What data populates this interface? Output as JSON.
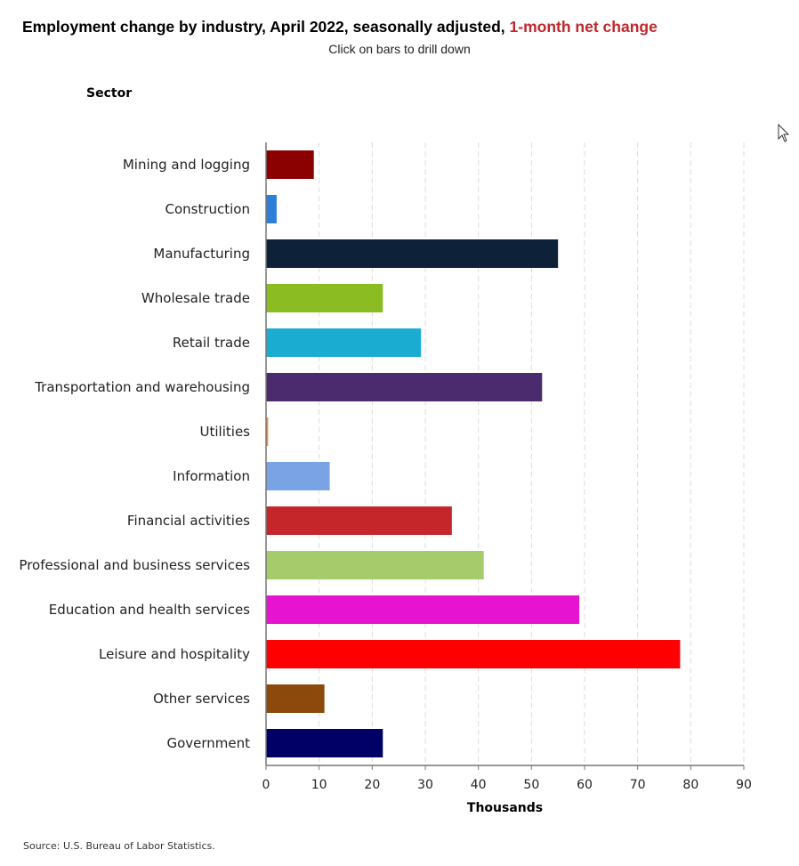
{
  "header": {
    "title_main": "Employment change by industry, April 2022, seasonally adjusted,",
    "title_accent": "1-month net change",
    "subtitle": "Click on bars to drill down"
  },
  "footer": {
    "source": "Source: U.S. Bureau of Labor Statistics."
  },
  "chart_data": {
    "type": "bar",
    "orientation": "horizontal",
    "ylabel": "Sector",
    "xlabel": "Thousands",
    "xlim": [
      0,
      90
    ],
    "xticks": [
      0,
      10,
      20,
      30,
      40,
      50,
      60,
      70,
      80,
      90
    ],
    "grid": "vertical dashed",
    "categories": [
      "Mining and logging",
      "Construction",
      "Manufacturing",
      "Wholesale trade",
      "Retail trade",
      "Transportation and warehousing",
      "Utilities",
      "Information",
      "Financial activities",
      "Professional and business services",
      "Education and health services",
      "Leisure and hospitality",
      "Other services",
      "Government"
    ],
    "values": [
      9,
      2,
      55,
      22,
      29.2,
      52,
      0.4,
      12,
      35,
      41,
      59,
      78,
      11,
      22
    ],
    "colors": [
      "#8b0000",
      "#2e7fd9",
      "#0d2138",
      "#8bbd23",
      "#1badd1",
      "#4b2a6e",
      "#f28e3c",
      "#7aa3e5",
      "#c4262a",
      "#a6cb6a",
      "#e614d1",
      "#ff0000",
      "#8b4a0c",
      "#000066"
    ]
  }
}
